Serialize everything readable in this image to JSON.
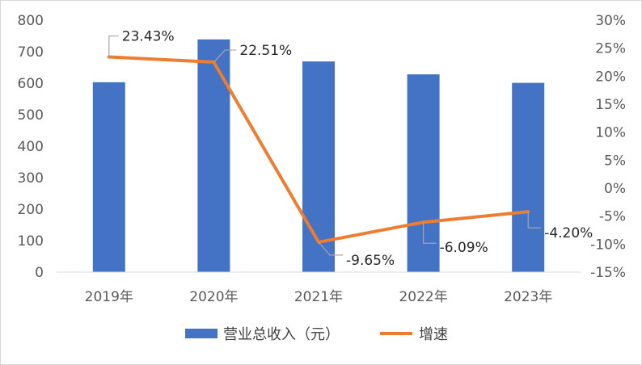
{
  "chart_data": {
    "type": "bar+line",
    "categories": [
      "2019年",
      "2020年",
      "2021年",
      "2022年",
      "2023年"
    ],
    "series": [
      {
        "name": "营业总收入（元）",
        "type": "bar",
        "axis": "left",
        "color": "#4472C4",
        "values": [
          603,
          739,
          669,
          628,
          601
        ]
      },
      {
        "name": "增速",
        "type": "line",
        "axis": "right",
        "color": "#ED7D31",
        "values": [
          23.43,
          22.51,
          -9.65,
          -6.09,
          -4.2
        ],
        "labels": [
          "23.43%",
          "22.51%",
          "-9.65%",
          "-6.09%",
          "-4.20%"
        ]
      }
    ],
    "y_left": {
      "range": [
        0,
        800
      ],
      "ticks": [
        "0",
        "100",
        "200",
        "300",
        "400",
        "500",
        "600",
        "700",
        "800"
      ]
    },
    "y_right": {
      "range": [
        -15,
        30
      ],
      "ticks": [
        "-15%",
        "-10%",
        "-5%",
        "0%",
        "5%",
        "10%",
        "15%",
        "20%",
        "25%",
        "30%"
      ]
    },
    "grid": false,
    "legend_position": "bottom"
  }
}
